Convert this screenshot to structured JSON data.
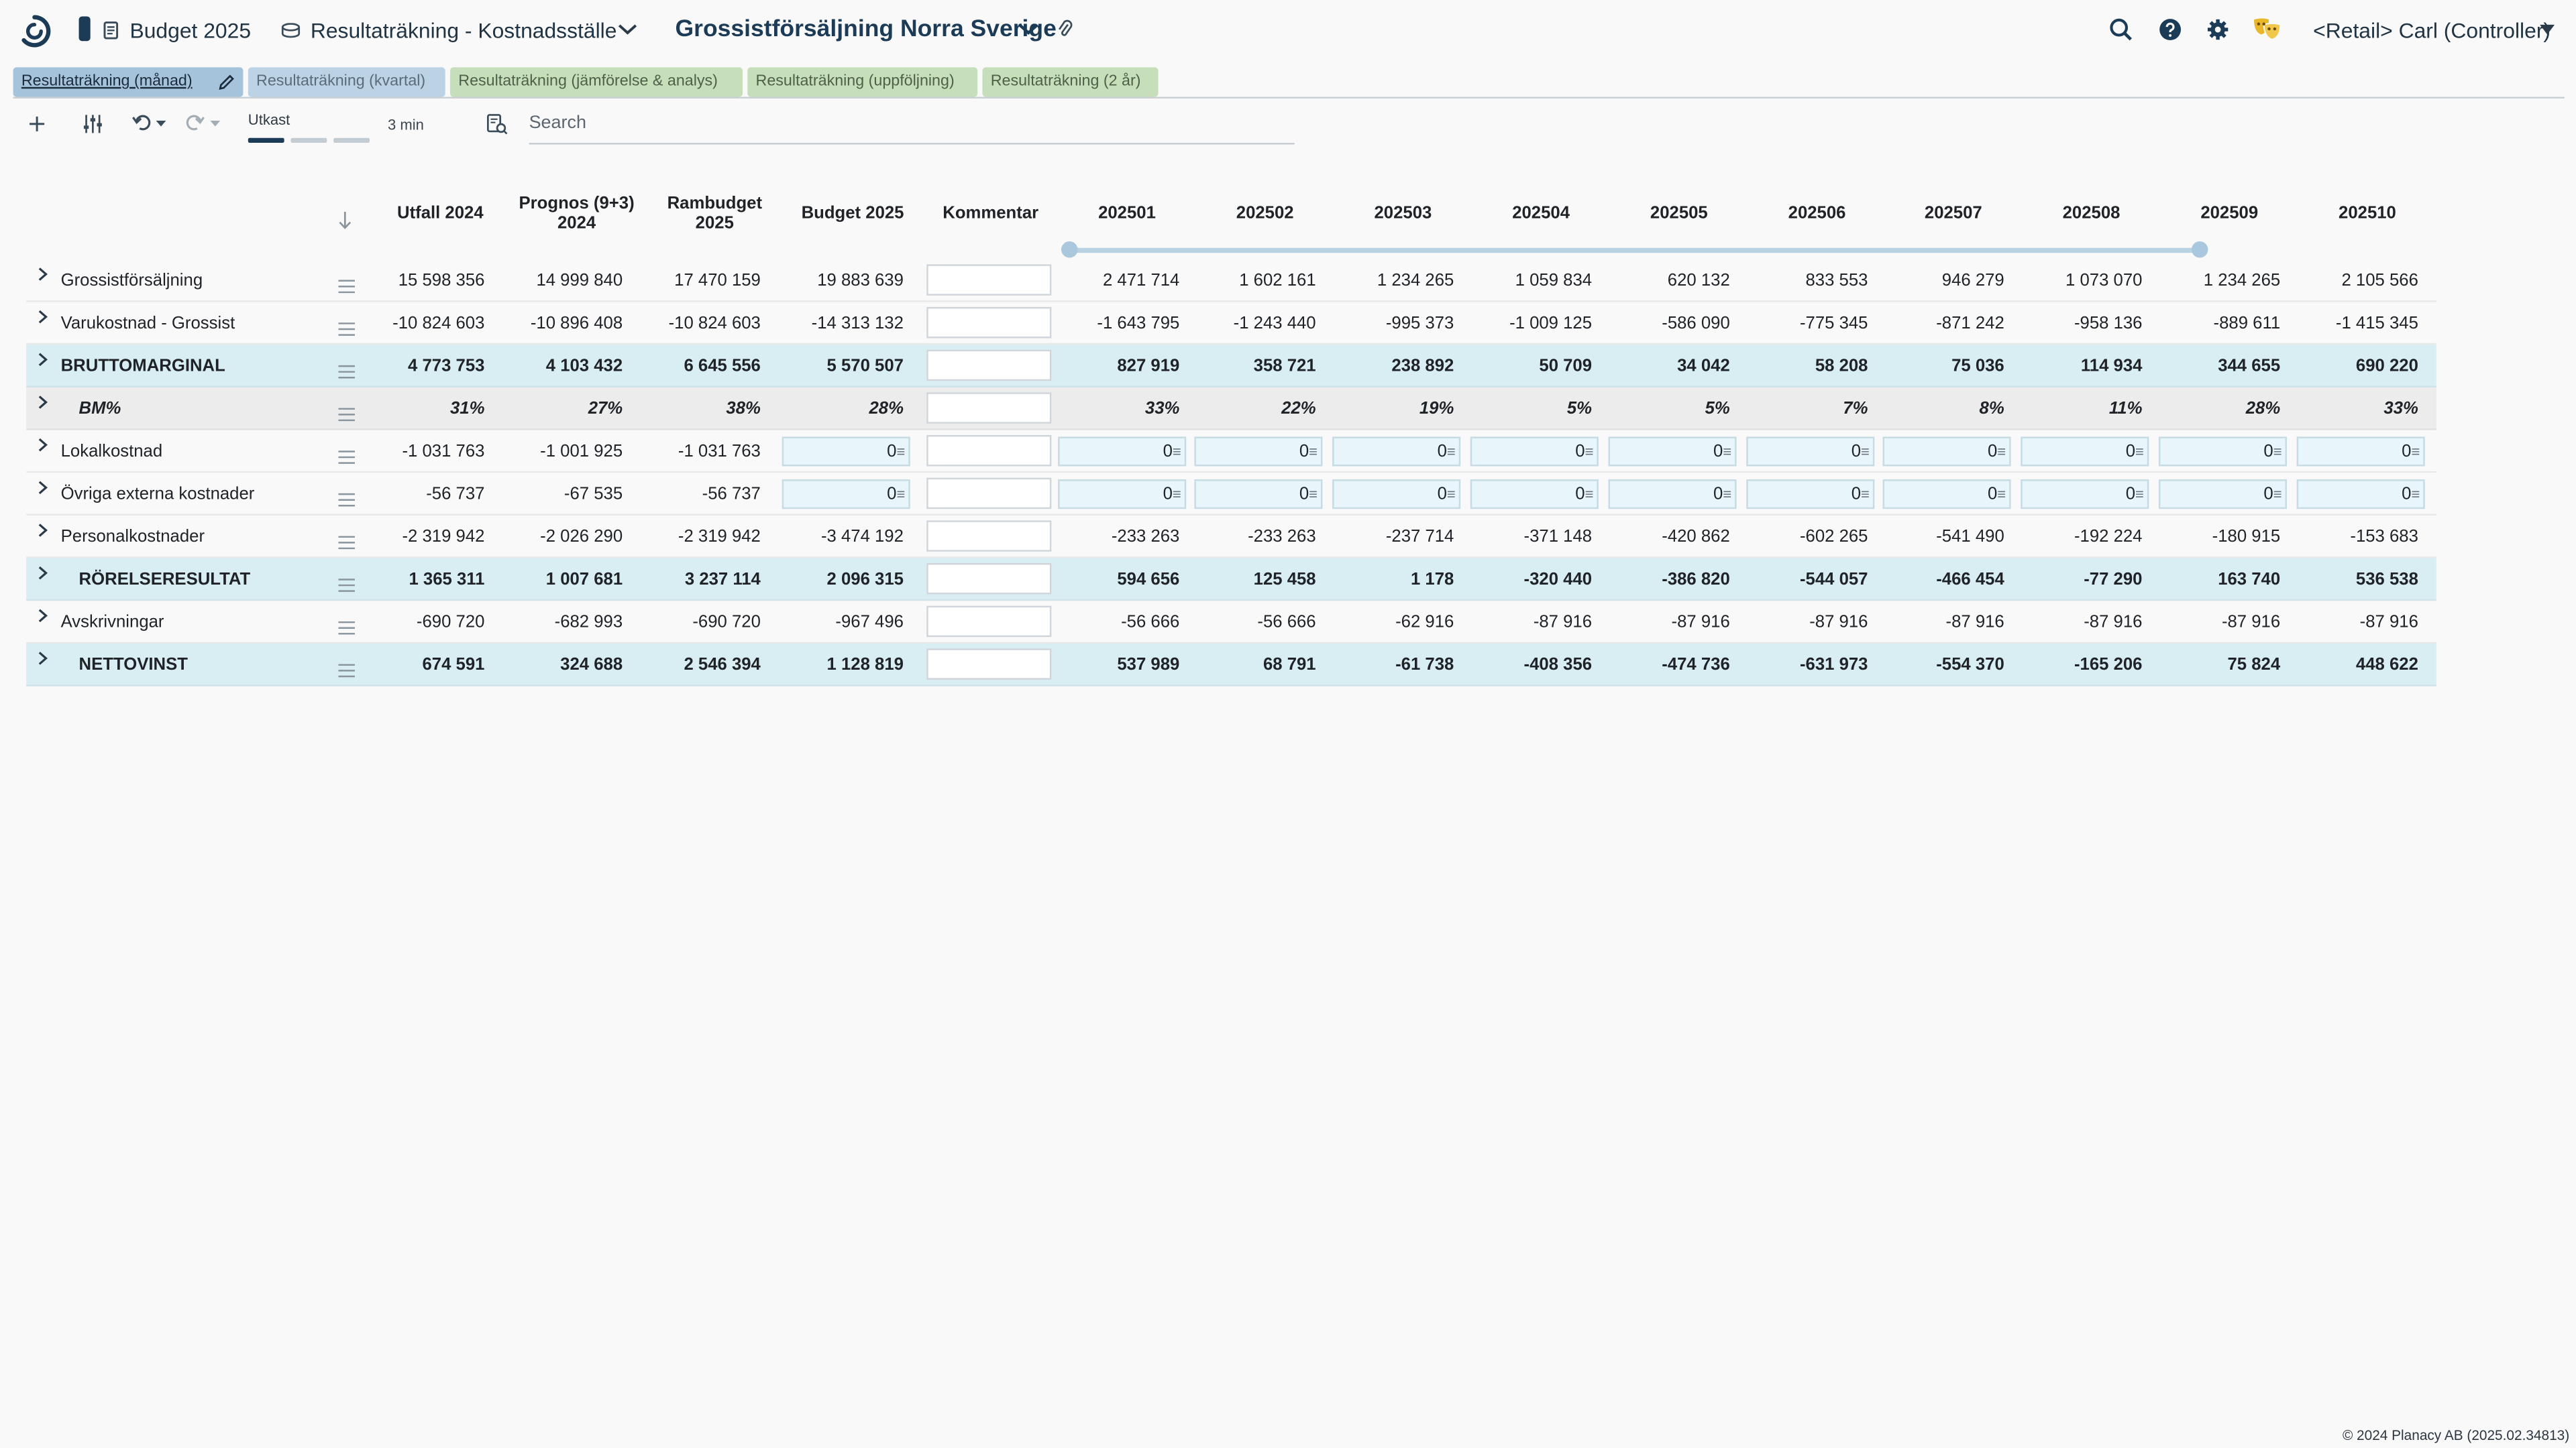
{
  "header": {
    "budget_label": "Budget 2025",
    "report_label": "Resultaträkning - Kostnadsställe",
    "entity_title": "Grossistförsäljning Norra Sverige",
    "user_label": "<Retail> Carl (Controller)"
  },
  "tabs": [
    {
      "label": "Resultaträkning (månad)"
    },
    {
      "label": "Resultaträkning (kvartal)"
    },
    {
      "label": "Resultaträkning (jämförelse & analys)"
    },
    {
      "label": "Resultaträkning (uppföljning)"
    },
    {
      "label": "Resultaträkning (2 år)"
    }
  ],
  "toolbar": {
    "status_label": "Utkast",
    "time_label": "3 min",
    "search_placeholder": "Search"
  },
  "grid": {
    "columns": [
      {
        "l1": "Utfall 2024",
        "l2": ""
      },
      {
        "l1": "Prognos (9+3)",
        "l2": "2024"
      },
      {
        "l1": "Rambudget",
        "l2": "2025"
      },
      {
        "l1": "Budget 2025",
        "l2": ""
      },
      {
        "l1": "Kommentar",
        "l2": ""
      },
      {
        "l1": "202501",
        "l2": ""
      },
      {
        "l1": "202502",
        "l2": ""
      },
      {
        "l1": "202503",
        "l2": ""
      },
      {
        "l1": "202504",
        "l2": ""
      },
      {
        "l1": "202505",
        "l2": ""
      },
      {
        "l1": "202506",
        "l2": ""
      },
      {
        "l1": "202507",
        "l2": ""
      },
      {
        "l1": "202508",
        "l2": ""
      },
      {
        "l1": "202509",
        "l2": ""
      },
      {
        "l1": "202510",
        "l2": ""
      }
    ],
    "rows": [
      {
        "label": "Grossistförsäljning",
        "style": "normal",
        "input": false,
        "values": [
          "15 598 356",
          "14 999 840",
          "17 470 159",
          "19 883 639",
          "2 471 714",
          "1 602 161",
          "1 234 265",
          "1 059 834",
          "620 132",
          "833 553",
          "946 279",
          "1 073 070",
          "1 234 265",
          "2 105 566"
        ]
      },
      {
        "label": "Varukostnad - Grossist",
        "style": "normal",
        "input": false,
        "values": [
          "-10 824 603",
          "-10 896 408",
          "-10 824 603",
          "-14 313 132",
          "-1 643 795",
          "-1 243 440",
          "-995 373",
          "-1 009 125",
          "-586 090",
          "-775 345",
          "-871 242",
          "-958 136",
          "-889 611",
          "-1 415 345"
        ]
      },
      {
        "label": "BRUTTOMARGINAL",
        "style": "sum",
        "input": false,
        "values": [
          "4 773 753",
          "4 103 432",
          "6 645 556",
          "5 570 507",
          "827 919",
          "358 721",
          "238 892",
          "50 709",
          "34 042",
          "58 208",
          "75 036",
          "114 934",
          "344 655",
          "690 220"
        ]
      },
      {
        "label": "BM%",
        "style": "pct",
        "input": false,
        "values": [
          "31%",
          "27%",
          "38%",
          "28%",
          "33%",
          "22%",
          "19%",
          "5%",
          "5%",
          "7%",
          "8%",
          "11%",
          "28%",
          "33%"
        ]
      },
      {
        "label": "Lokalkostnad",
        "style": "normal",
        "input": true,
        "values": [
          "-1 031 763",
          "-1 001 925",
          "-1 031 763",
          "0",
          "0",
          "0",
          "0",
          "0",
          "0",
          "0",
          "0",
          "0",
          "0",
          "0"
        ]
      },
      {
        "label": "Övriga externa kostnader",
        "style": "normal",
        "input": true,
        "values": [
          "-56 737",
          "-67 535",
          "-56 737",
          "0",
          "0",
          "0",
          "0",
          "0",
          "0",
          "0",
          "0",
          "0",
          "0",
          "0"
        ]
      },
      {
        "label": "Personalkostnader",
        "style": "normal",
        "input": false,
        "values": [
          "-2 319 942",
          "-2 026 290",
          "-2 319 942",
          "-3 474 192",
          "-233 263",
          "-233 263",
          "-237 714",
          "-371 148",
          "-420 862",
          "-602 265",
          "-541 490",
          "-192 224",
          "-180 915",
          "-153 683"
        ]
      },
      {
        "label": "RÖRELSERESULTAT",
        "style": "sum",
        "input": false,
        "values": [
          "1 365 311",
          "1 007 681",
          "3 237 114",
          "2 096 315",
          "594 656",
          "125 458",
          "1 178",
          "-320 440",
          "-386 820",
          "-544 057",
          "-466 454",
          "-77 290",
          "163 740",
          "536 538"
        ]
      },
      {
        "label": "Avskrivningar",
        "style": "normal",
        "input": false,
        "values": [
          "-690 720",
          "-682 993",
          "-690 720",
          "-967 496",
          "-56 666",
          "-56 666",
          "-62 916",
          "-87 916",
          "-87 916",
          "-87 916",
          "-87 916",
          "-87 916",
          "-87 916",
          "-87 916"
        ]
      },
      {
        "label": "NETTOVINST",
        "style": "sum",
        "input": false,
        "values": [
          "674 591",
          "324 688",
          "2 546 394",
          "1 128 819",
          "537 989",
          "68 791",
          "-61 738",
          "-408 356",
          "-474 736",
          "-631 973",
          "-554 370",
          "-165 206",
          "75 824",
          "448 622"
        ]
      }
    ]
  },
  "footer": "© 2024 Planacy AB (2025.02.34813)"
}
